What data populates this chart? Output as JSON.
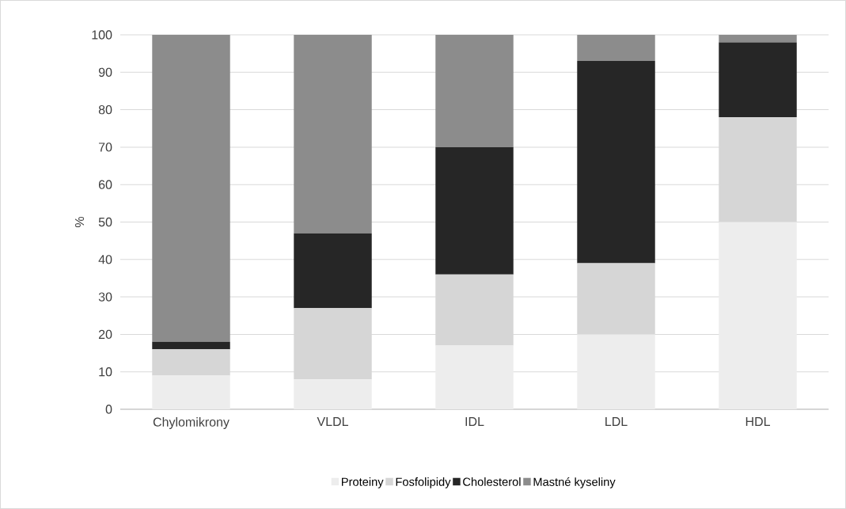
{
  "chart_data": {
    "type": "bar",
    "stacked": true,
    "ylabel": "%",
    "categories": [
      "Chylomikrony",
      "VLDL",
      "IDL",
      "LDL",
      "HDL"
    ],
    "series": [
      {
        "name": "Proteiny",
        "color": "#ededed",
        "values": [
          9,
          8,
          17,
          20,
          50
        ]
      },
      {
        "name": "Fosfolipidy",
        "color": "#d6d6d6",
        "values": [
          7,
          19,
          19,
          19,
          28
        ]
      },
      {
        "name": "Cholesterol",
        "color": "#262626",
        "values": [
          2,
          20,
          34,
          54,
          20
        ]
      },
      {
        "name": "Mastné kyseliny",
        "color": "#8c8c8c",
        "values": [
          82,
          53,
          30,
          7,
          2
        ]
      }
    ],
    "ylim": [
      0,
      100
    ],
    "yticks": [
      0,
      10,
      20,
      30,
      40,
      50,
      60,
      70,
      80,
      90,
      100
    ],
    "grid": "y",
    "legend": "bottom"
  }
}
